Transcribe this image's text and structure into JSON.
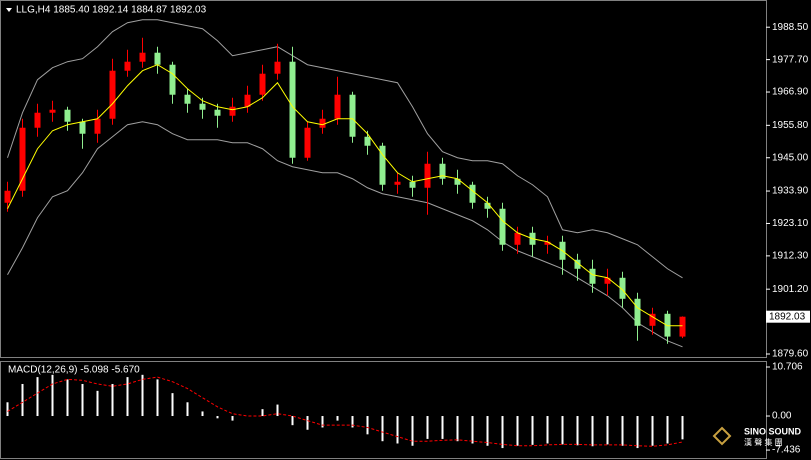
{
  "chart_data": [
    {
      "type": "candlestick",
      "title": "LLG,H4  1885.40 1892.14 1884.87 1892.03",
      "up_color": "#ff0000",
      "down_color": "#90ee90",
      "ma_color": "#ffff00",
      "band_color": "#a0a0a0",
      "open": [
        1930,
        1934,
        1955,
        1960,
        1961,
        1957,
        1953,
        1958,
        1974,
        1977,
        1980,
        1976,
        1966,
        1963,
        1961,
        1959,
        1962,
        1966,
        1973,
        1977,
        1945,
        1955,
        1958,
        1966,
        1952,
        1949,
        1936,
        1937,
        1935,
        1943,
        1938,
        1936,
        1930,
        1928,
        1916,
        1920,
        1916,
        1917,
        1911,
        1908,
        1903,
        1905,
        1898,
        1889,
        1893,
        1885.4
      ],
      "high": [
        1937,
        1958,
        1963,
        1964,
        1962,
        1958,
        1961,
        1978,
        1981,
        1985,
        1982,
        1977,
        1968,
        1965,
        1963,
        1965,
        1969,
        1976,
        1983,
        1982,
        1957,
        1961,
        1972,
        1967,
        1954,
        1950,
        1940,
        1939,
        1947,
        1945,
        1941,
        1937,
        1932,
        1930,
        1922,
        1922,
        1919,
        1919,
        1913,
        1911,
        1908,
        1907,
        1900,
        1895,
        1894,
        1892.14
      ],
      "low": [
        1927,
        1932,
        1952,
        1957,
        1954,
        1948,
        1950,
        1956,
        1972,
        1975,
        1973,
        1963,
        1960,
        1958,
        1955,
        1957,
        1960,
        1964,
        1971,
        1943,
        1944,
        1953,
        1956,
        1950,
        1946,
        1934,
        1933,
        1932,
        1926,
        1936,
        1933,
        1928,
        1925,
        1914,
        1913,
        1912,
        1913,
        1906,
        1904,
        1900,
        1899,
        1895,
        1884,
        1886,
        1883,
        1884.87
      ],
      "close": [
        1934,
        1955,
        1960,
        1961,
        1957,
        1953,
        1958,
        1974,
        1977,
        1980,
        1976,
        1966,
        1963,
        1961,
        1959,
        1962,
        1966,
        1973,
        1977,
        1945,
        1955,
        1958,
        1966,
        1952,
        1949,
        1936,
        1937,
        1935,
        1943,
        1938,
        1936,
        1930,
        1928,
        1916,
        1920,
        1916,
        1917,
        1911,
        1908,
        1903,
        1905,
        1898,
        1889,
        1893,
        1885.4,
        1892.03
      ],
      "ma": [
        1928,
        1938,
        1948,
        1954,
        1956,
        1957,
        1958,
        1963,
        1969,
        1974,
        1976,
        1973,
        1968,
        1964,
        1962,
        1961,
        1962,
        1965,
        1970,
        1962,
        1957,
        1956,
        1958,
        1958,
        1953,
        1946,
        1940,
        1937,
        1938,
        1939,
        1938,
        1934,
        1930,
        1924,
        1920,
        1918,
        1917,
        1914,
        1910,
        1906,
        1905,
        1901,
        1895,
        1892,
        1889,
        1889
      ],
      "bb_upper": [
        1945,
        1960,
        1971,
        1975,
        1977,
        1978,
        1982,
        1987,
        1990,
        1991,
        1991,
        1990,
        1989,
        1988,
        1984,
        1979,
        1980,
        1981,
        1982,
        1979,
        1976,
        1975,
        1974,
        1973,
        1972,
        1971,
        1970,
        1962,
        1953,
        1947,
        1945,
        1944,
        1944,
        1943,
        1939,
        1936,
        1932,
        1921,
        1920,
        1921,
        1920,
        1918,
        1916,
        1912,
        1908,
        1905
      ],
      "bb_lower": [
        1906,
        1915,
        1925,
        1932,
        1934,
        1940,
        1948,
        1952,
        1956,
        1957,
        1956,
        1953,
        1951,
        1951,
        1951,
        1950,
        1950,
        1948,
        1944,
        1942,
        1941,
        1940,
        1940,
        1938,
        1935,
        1933,
        1932,
        1931,
        1930,
        1928,
        1926,
        1924,
        1921,
        1917,
        1914,
        1912,
        1910,
        1908,
        1905,
        1902,
        1899,
        1895,
        1890,
        1887,
        1884,
        1882
      ],
      "current_price": 1892.03,
      "ylim": [
        1878.6,
        1995.9
      ],
      "yticks": [
        {
          "value": 1988.5,
          "label": "1988.50"
        },
        {
          "value": 1977.7,
          "label": "1977.70"
        },
        {
          "value": 1966.9,
          "label": "1966.90"
        },
        {
          "value": 1955.8,
          "label": "1955.80"
        },
        {
          "value": 1945,
          "label": "1945.00"
        },
        {
          "value": 1933.9,
          "label": "1933.90"
        },
        {
          "value": 1923.1,
          "label": "1923.10"
        },
        {
          "value": 1912.3,
          "label": "1912.30"
        },
        {
          "value": 1901.2,
          "label": "1901.20"
        },
        {
          "value": 1879.6,
          "label": "1879.60"
        }
      ]
    },
    {
      "type": "macd",
      "title": "MACD(12,26,9) -5.098 -5.670",
      "hist_color": "#ffffff",
      "signal_color": "#ff0000",
      "histogram": [
        3,
        7,
        8.5,
        9,
        8,
        7,
        5.5,
        7,
        8.5,
        9,
        8,
        5,
        3,
        1,
        -0.5,
        -1,
        0,
        1.5,
        2.5,
        -2,
        -3,
        -2.5,
        -1,
        -2.5,
        -4,
        -5.5,
        -6,
        -6.5,
        -5,
        -5,
        -5.5,
        -6,
        -6.5,
        -7,
        -6.5,
        -6.3,
        -6,
        -6.2,
        -6.4,
        -6.6,
        -6.2,
        -6.5,
        -7,
        -6.5,
        -6,
        -5.098
      ],
      "signal": [
        1,
        3,
        5,
        7,
        8,
        7.8,
        7,
        6.5,
        7,
        8,
        8.5,
        7.5,
        6,
        4,
        2,
        0.5,
        0,
        0,
        0.5,
        0,
        -1,
        -2,
        -2,
        -2,
        -2.5,
        -3.5,
        -4.5,
        -5.5,
        -5.5,
        -5.3,
        -5.2,
        -5.5,
        -5.8,
        -6.2,
        -6.5,
        -6.5,
        -6.3,
        -6.2,
        -6.2,
        -6.3,
        -6.3,
        -6.3,
        -6.5,
        -6.6,
        -6.3,
        -5.67
      ],
      "ylim": [
        -9.17,
        11.8
      ],
      "yticks": [
        10.706,
        {
          "value": 0,
          "label": "0.00"
        },
        -7.436
      ]
    }
  ],
  "logo": {
    "name": "SINO SOUND",
    "subtitle": "漢 聲 集 團"
  }
}
